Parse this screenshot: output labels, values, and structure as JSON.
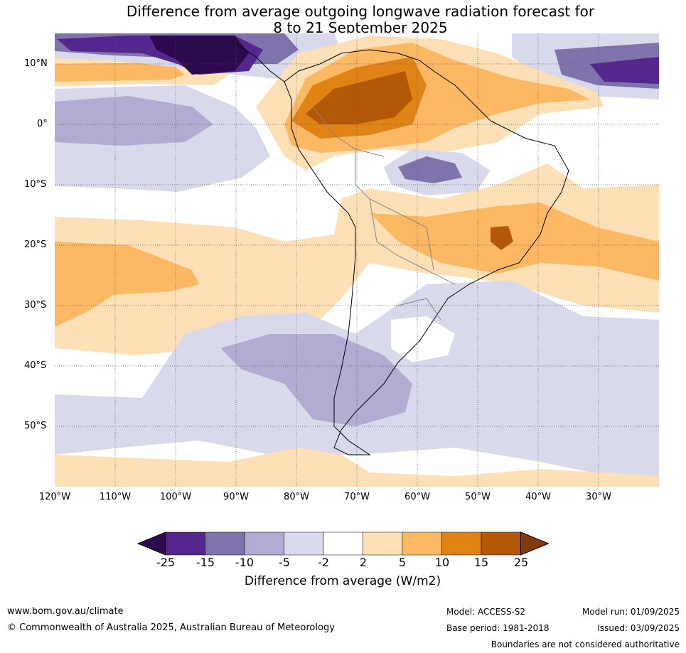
{
  "title": {
    "line1": "Difference from average outgoing longwave radiation forecast for",
    "line2": "8 to 21 September 2025"
  },
  "map": {
    "lat_labels": [
      "10°N",
      "0°",
      "10°S",
      "20°S",
      "30°S",
      "40°S",
      "50°S"
    ],
    "lon_labels": [
      "120°W",
      "110°W",
      "100°W",
      "90°W",
      "80°W",
      "70°W",
      "60°W",
      "50°W",
      "40°W",
      "30°W"
    ],
    "lon_range": [
      -120,
      -20
    ],
    "lat_range": [
      -60,
      15
    ]
  },
  "colorbar": {
    "title": "Difference from average (W/m2)",
    "ticks": [
      "-25",
      "-15",
      "-10",
      "-5",
      "-2",
      "2",
      "5",
      "10",
      "15",
      "25"
    ],
    "colors": [
      "#2d0a4e",
      "#54278f",
      "#8073ac",
      "#b2abd2",
      "#d8daeb",
      "#ffffff",
      "#fee0b6",
      "#fdb863",
      "#e08214",
      "#b35806",
      "#7f3b08"
    ]
  },
  "footer": {
    "website": "www.bom.gov.au/climate",
    "copyright": "© Commonwealth of Australia 2025, Australian Bureau of Meteorology",
    "model": "Model: ACCESS-S2",
    "base_period": "Base period: 1981-2018",
    "model_run": "Model run: 01/09/2025",
    "issued": "Issued: 03/09/2025",
    "disclaimer": "Boundaries are not considered authoritative"
  }
}
